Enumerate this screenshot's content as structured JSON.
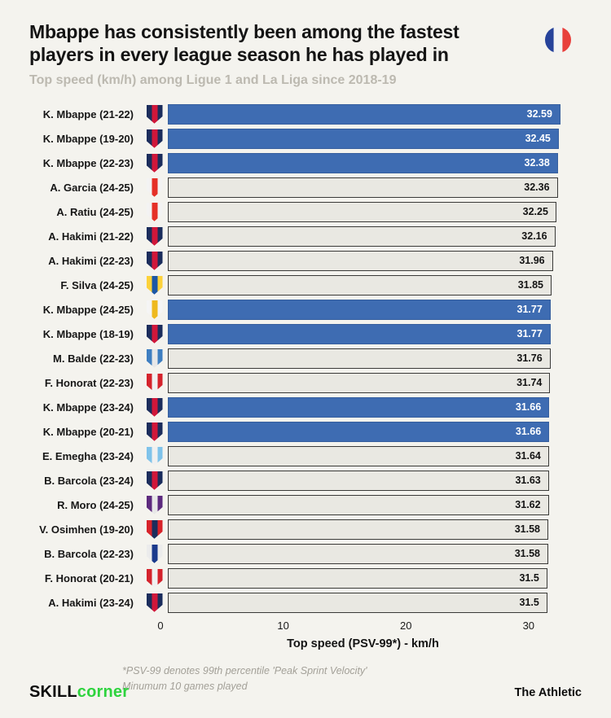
{
  "header": {
    "title_line1": "Mbappe has consistently been among the fastest",
    "title_line2": "players in every league season he has played in",
    "subtitle": "Top speed (km/h) among Ligue 1 and La Liga since 2018-19"
  },
  "flag": {
    "name": "france-flag-icon",
    "colors": [
      "#26429a",
      "#f2f2f2",
      "#e8403c"
    ]
  },
  "chart_data": {
    "type": "bar",
    "orientation": "horizontal",
    "title": "Mbappe has consistently been among the fastest players in every league season he has played in",
    "subtitle": "Top speed (km/h) among Ligue 1 and La Liga since 2018-19",
    "categories": [
      "K. Mbappe (21-22)",
      "K. Mbappe (19-20)",
      "K. Mbappe (22-23)",
      "A. Garcia (24-25)",
      "A. Ratiu (24-25)",
      "A. Hakimi (21-22)",
      "A. Hakimi (22-23)",
      "F. Silva (24-25)",
      "K. Mbappe (24-25)",
      "K. Mbappe (18-19)",
      "M. Balde (22-23)",
      "F. Honorat (22-23)",
      "K. Mbappe (23-24)",
      "K. Mbappe (20-21)",
      "E. Emegha (23-24)",
      "B. Barcola (23-24)",
      "R. Moro (24-25)",
      "V. Osimhen (19-20)",
      "B. Barcola (22-23)",
      "F. Honorat (20-21)",
      "A. Hakimi (23-24)"
    ],
    "values": [
      32.59,
      32.45,
      32.38,
      32.36,
      32.25,
      32.16,
      31.96,
      31.85,
      31.77,
      31.77,
      31.76,
      31.74,
      31.66,
      31.66,
      31.64,
      31.63,
      31.62,
      31.58,
      31.58,
      31.5,
      31.5
    ],
    "highlighted_category": "K. Mbappe",
    "xlabel": "Top speed (PSV-99*) - km/h",
    "x_ticks": [
      0,
      10,
      20,
      30
    ],
    "xlim": [
      0,
      33
    ],
    "grid": false,
    "legend": false,
    "bar_color_highlight": "#3e6cb2",
    "bar_color_default": "#e9e8e2"
  },
  "rows": [
    {
      "label": "K. Mbappe (21-22)",
      "value": "32.59",
      "highlight": true,
      "club": "psg"
    },
    {
      "label": "K. Mbappe (19-20)",
      "value": "32.45",
      "highlight": true,
      "club": "psg"
    },
    {
      "label": "K. Mbappe (22-23)",
      "value": "32.38",
      "highlight": true,
      "club": "psg"
    },
    {
      "label": "A. Garcia (24-25)",
      "value": "32.36",
      "highlight": false,
      "club": "rayo"
    },
    {
      "label": "A. Ratiu (24-25)",
      "value": "32.25",
      "highlight": false,
      "club": "rayo"
    },
    {
      "label": "A. Hakimi (21-22)",
      "value": "32.16",
      "highlight": false,
      "club": "psg"
    },
    {
      "label": "A. Hakimi (22-23)",
      "value": "31.96",
      "highlight": false,
      "club": "psg"
    },
    {
      "label": "F. Silva (24-25)",
      "value": "31.85",
      "highlight": false,
      "club": "las_palmas"
    },
    {
      "label": "K. Mbappe (24-25)",
      "value": "31.77",
      "highlight": true,
      "club": "real_madrid"
    },
    {
      "label": "K. Mbappe (18-19)",
      "value": "31.77",
      "highlight": true,
      "club": "psg"
    },
    {
      "label": "M. Balde (22-23)",
      "value": "31.76",
      "highlight": false,
      "club": "espanyol"
    },
    {
      "label": "F. Honorat (22-23)",
      "value": "31.74",
      "highlight": false,
      "club": "brest"
    },
    {
      "label": "K. Mbappe (23-24)",
      "value": "31.66",
      "highlight": true,
      "club": "psg"
    },
    {
      "label": "K. Mbappe (20-21)",
      "value": "31.66",
      "highlight": true,
      "club": "psg"
    },
    {
      "label": "E. Emegha (23-24)",
      "value": "31.64",
      "highlight": false,
      "club": "strasbourg"
    },
    {
      "label": "B. Barcola (23-24)",
      "value": "31.63",
      "highlight": false,
      "club": "psg"
    },
    {
      "label": "R. Moro (24-25)",
      "value": "31.62",
      "highlight": false,
      "club": "valladolid"
    },
    {
      "label": "V. Osimhen (19-20)",
      "value": "31.58",
      "highlight": false,
      "club": "lille"
    },
    {
      "label": "B. Barcola (22-23)",
      "value": "31.58",
      "highlight": false,
      "club": "lyon"
    },
    {
      "label": "F. Honorat (20-21)",
      "value": "31.5",
      "highlight": false,
      "club": "brest"
    },
    {
      "label": "A. Hakimi (23-24)",
      "value": "31.5",
      "highlight": false,
      "club": "psg"
    }
  ],
  "crest_colors": {
    "psg": [
      "#1b2d5c",
      "#d0173a"
    ],
    "rayo": [
      "#f3f3f3",
      "#e53027"
    ],
    "las_palmas": [
      "#fdd23a",
      "#1c57a5"
    ],
    "real_madrid": [
      "#f5f5f5",
      "#eeb91f"
    ],
    "espanyol": [
      "#3f7fc1",
      "#e8e8e8"
    ],
    "brest": [
      "#d5232c",
      "#f0f0f0"
    ],
    "strasbourg": [
      "#7fc3ea",
      "#f0f0f0"
    ],
    "valladolid": [
      "#5d2a7e",
      "#e8e8e8"
    ],
    "lille": [
      "#d8232a",
      "#1b2d5c"
    ],
    "lyon": [
      "#ececec",
      "#1b3a8c"
    ]
  },
  "axis": {
    "ticks": [
      "0",
      "10",
      "20",
      "30"
    ],
    "label": "Top speed (PSV-99*) - km/h"
  },
  "footnote": {
    "line1": "*PSV-99 denotes 99th percentile 'Peak Sprint Velocity'",
    "line2": "Minumum 10 games played"
  },
  "footer": {
    "brand_skill": "SKILL",
    "brand_corner": "corner",
    "brand_corner_color": "#2ed33e",
    "brand_right": "The Athletic"
  }
}
